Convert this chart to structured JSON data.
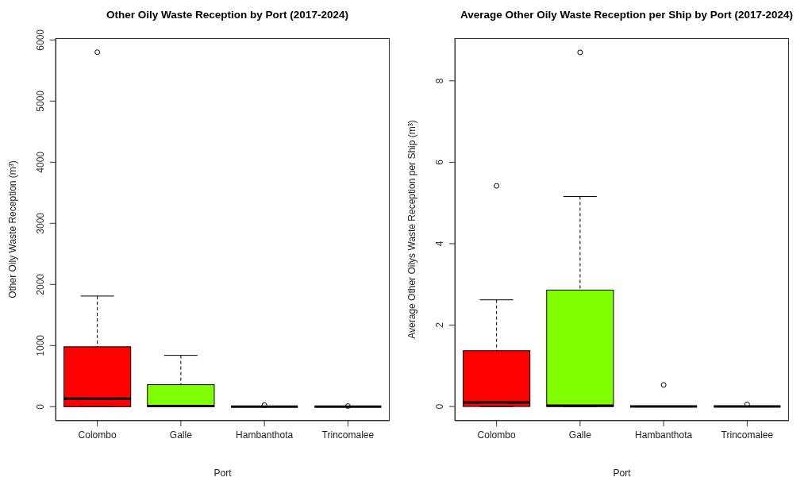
{
  "chart_data": [
    {
      "type": "box",
      "title": "Other Oily Waste Reception by Port (2017-2024)",
      "xlabel": "Port",
      "ylabel": "Other Oily Waste Reception  (m³)",
      "categories": [
        "Colombo",
        "Galle",
        "Hambanthota",
        "Trincomalee"
      ],
      "colors": [
        "#ff0000",
        "#80ff00",
        null,
        null
      ],
      "boxes": [
        {
          "low": 0,
          "q1": 0,
          "median": 130,
          "q3": 980,
          "high": 1810,
          "outliers": [
            5800
          ]
        },
        {
          "low": 0,
          "q1": 0,
          "median": 10,
          "q3": 360,
          "high": 840
        },
        {
          "low": 0,
          "q1": 0,
          "median": 0,
          "q3": 0,
          "high": 0,
          "outliers": [
            25
          ]
        },
        {
          "low": 0,
          "q1": 0,
          "median": 0,
          "q3": 0,
          "high": 0,
          "outliers": [
            10
          ]
        }
      ],
      "ylim": [
        -230,
        6030
      ],
      "yticks": [
        0,
        1000,
        2000,
        3000,
        4000,
        5000,
        6000
      ],
      "grid": false,
      "legend": false
    },
    {
      "type": "box",
      "title": "Average Other Oily Waste Reception per Ship by Port (2017-2024)",
      "xlabel": "Port",
      "ylabel": "Average Other Oilys Waste Reception per Ship  (m³)",
      "categories": [
        "Colombo",
        "Galle",
        "Hambanthota",
        "Trincomalee"
      ],
      "colors": [
        "#ff0000",
        "#80ff00",
        null,
        null
      ],
      "boxes": [
        {
          "low": 0,
          "q1": 0,
          "median": 0.1,
          "q3": 1.37,
          "high": 2.62,
          "outliers": [
            5.42
          ]
        },
        {
          "low": 0,
          "q1": 0,
          "median": 0.02,
          "q3": 2.86,
          "high": 5.16,
          "outliers": [
            8.7
          ]
        },
        {
          "low": 0,
          "q1": 0,
          "median": 0,
          "q3": 0,
          "high": 0,
          "outliers": [
            0.53
          ]
        },
        {
          "low": 0,
          "q1": 0,
          "median": 0,
          "q3": 0,
          "high": 0,
          "outliers": [
            0.05
          ]
        }
      ],
      "ylim": [
        -0.35,
        9.05
      ],
      "yticks": [
        0,
        2,
        4,
        6,
        8
      ],
      "grid": false,
      "legend": false
    }
  ]
}
